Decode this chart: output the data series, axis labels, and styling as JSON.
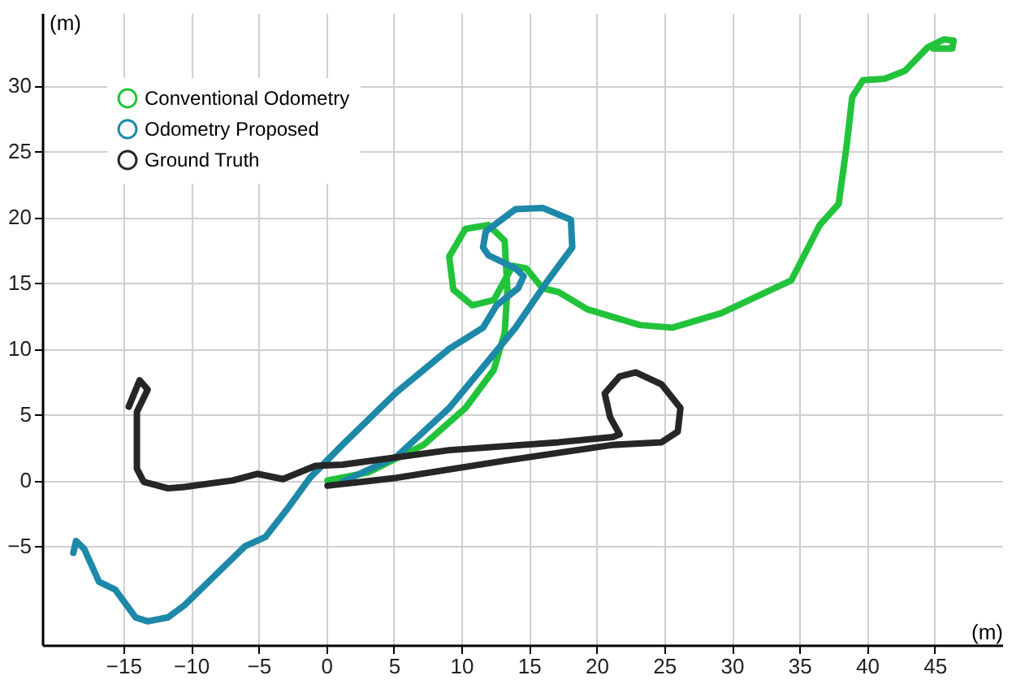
{
  "chart_data": {
    "type": "line",
    "xlabel": "(m)",
    "ylabel": "(m)",
    "xlim": [
      -21,
      50
    ],
    "ylim": [
      -12.5,
      35.5
    ],
    "xticks": [
      -15,
      -10,
      -5,
      0,
      5,
      10,
      15,
      20,
      25,
      30,
      35,
      40,
      45
    ],
    "yticks": [
      -5,
      0,
      5,
      10,
      15,
      20,
      25,
      30
    ],
    "grid": true,
    "legend": "top left",
    "line_style": "solid",
    "series": [
      {
        "name": "Conventional Odometry",
        "color": "#22c33a",
        "x": [
          0.1,
          3.1,
          7.2,
          10.3,
          12.4,
          13.2,
          13.4,
          13.2,
          12,
          10.3,
          9.1,
          9.4,
          10.8,
          12.4,
          13.2,
          13.8,
          14.8,
          16,
          17.2,
          19.3,
          23.2,
          25.6,
          29.2,
          34.4,
          36.5,
          37.9,
          38.5,
          38.9,
          39.7,
          41.3,
          42.8,
          44.5,
          45.7,
          46.4,
          46.3,
          44.9
        ],
        "values": [
          0,
          0.6,
          2.7,
          5.5,
          8.4,
          11.2,
          14.5,
          18.2,
          19.4,
          19.1,
          17,
          14.5,
          13.3,
          13.7,
          15.2,
          16.3,
          16.1,
          14.6,
          14.3,
          13,
          11.8,
          11.6,
          12.7,
          15.2,
          19.4,
          21,
          25.5,
          29.1,
          30.4,
          30.5,
          31.1,
          32.9,
          33.5,
          33.4,
          32.8,
          32.8
        ]
      },
      {
        "name": "Odometry Proposed",
        "color": "#1e88a8",
        "x": [
          -18.7,
          -18.5,
          -17.9,
          -16.8,
          -15.6,
          -14.1,
          -13.2,
          -11.7,
          -10.5,
          -8.1,
          -6,
          -4.5,
          -2.9,
          -1.2,
          1.2,
          5.2,
          9.1,
          11.6,
          12.6,
          14.2,
          14.6,
          14,
          12,
          11.6,
          11.8,
          14,
          16,
          18.1,
          18.2,
          16.4,
          14,
          12,
          9.1,
          5.2,
          1.2
        ],
        "values": [
          -5.5,
          -4.6,
          -5.2,
          -7.7,
          -8.3,
          -10.4,
          -10.7,
          -10.4,
          -9.5,
          -7.1,
          -5,
          -4.3,
          -2.2,
          0.2,
          2.7,
          6.7,
          10,
          11.6,
          13.3,
          14.6,
          15.5,
          16.1,
          17.1,
          17.7,
          18.9,
          20.6,
          20.7,
          19.8,
          17.7,
          15.2,
          11.6,
          9.1,
          5.5,
          1.8,
          -0.1
        ]
      },
      {
        "name": "Ground Truth",
        "color": "#262626",
        "x": [
          -14.6,
          -13.8,
          -13.2,
          -14,
          -14,
          -13.5,
          -11.7,
          -10.5,
          -6.9,
          -5.1,
          -3.2,
          -0.8,
          1.2,
          9.1,
          17.2,
          21.2,
          21.7,
          21,
          20.6,
          21.7,
          22.9,
          24.8,
          26.2,
          26,
          24.8,
          21.2,
          13.2,
          5.2,
          0.1
        ],
        "values": [
          5.6,
          7.6,
          6.9,
          5.2,
          0.9,
          -0.1,
          -0.6,
          -0.5,
          0,
          0.5,
          0.1,
          1.1,
          1.2,
          2.3,
          2.9,
          3.3,
          3.5,
          4.8,
          6.6,
          7.9,
          8.2,
          7.3,
          5.5,
          3.7,
          2.9,
          2.7,
          1.5,
          0.2,
          -0.4
        ]
      }
    ]
  }
}
